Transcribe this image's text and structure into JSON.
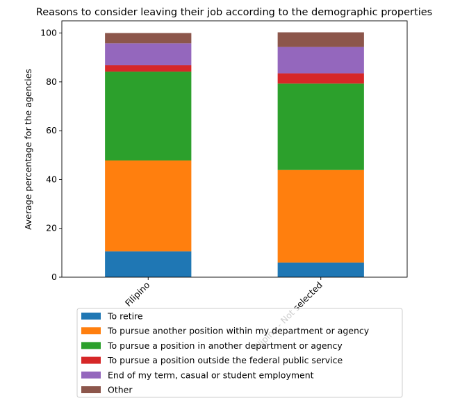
{
  "chart_data": {
    "type": "bar",
    "stacked": true,
    "title": "Reasons to consider leaving their job according to the demographic properties",
    "xlabel": "",
    "ylabel": "Average percentage for the agencies",
    "ylim": [
      0,
      105
    ],
    "yticks": [
      0,
      20,
      40,
      60,
      80,
      100
    ],
    "grid": false,
    "legend_position": "bottom-center",
    "categories": [
      "Filipino",
      "Filipino - Not selected"
    ],
    "series": [
      {
        "name": "To retire",
        "color": "#1f77b4",
        "values": [
          10.6,
          6.0
        ]
      },
      {
        "name": "To pursue another position within my department or agency",
        "color": "#ff7f0e",
        "values": [
          37.2,
          37.9
        ]
      },
      {
        "name": "To pursue a position in another department or agency",
        "color": "#2ca02c",
        "values": [
          36.4,
          35.4
        ]
      },
      {
        "name": "To pursue a position outside the federal public service",
        "color": "#d62728",
        "values": [
          2.6,
          4.2
        ]
      },
      {
        "name": "End of my term, casual or student employment",
        "color": "#9467bd",
        "values": [
          9.0,
          10.8
        ]
      },
      {
        "name": "Other",
        "color": "#8c564b",
        "values": [
          4.2,
          6.0
        ]
      }
    ]
  }
}
